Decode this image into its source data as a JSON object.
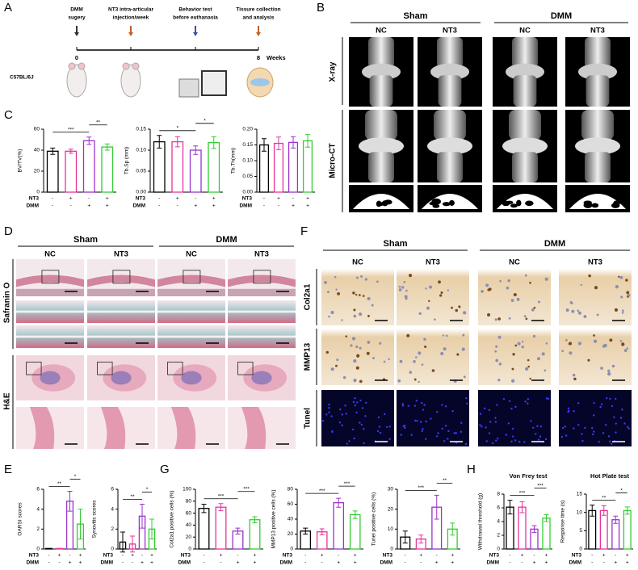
{
  "panels": {
    "A": {
      "letter": "A",
      "events": [
        [
          "DMM",
          "sugery"
        ],
        [
          "NT3 intra-articular",
          "injection/week"
        ],
        [
          "Behavior test",
          "before euthanasia"
        ],
        [
          "Tissure collection",
          "and analysis"
        ]
      ],
      "start_week": 0,
      "end_week": 8,
      "unit": "Weeks",
      "strain": "C57BL/6J"
    },
    "B": {
      "letter": "B",
      "groups": [
        "Sham",
        "DMM"
      ],
      "columns": [
        "NC",
        "NT3",
        "NC",
        "NT3"
      ],
      "rows": [
        "X-ray",
        "Micro-CT"
      ]
    },
    "C": {
      "letter": "C"
    },
    "D": {
      "letter": "D",
      "groups": [
        "Sham",
        "DMM"
      ],
      "columns": [
        "NC",
        "NT3",
        "NC",
        "NT3"
      ],
      "rows": [
        "Safranin O",
        "H&E"
      ]
    },
    "E": {
      "letter": "E"
    },
    "F": {
      "letter": "F",
      "groups": [
        "Sham",
        "DMM"
      ],
      "columns": [
        "NC",
        "NT3",
        "NC",
        "NT3"
      ],
      "rows": [
        "Col2a1",
        "MMP13",
        "Tunel"
      ]
    },
    "G": {
      "letter": "G"
    },
    "H": {
      "letter": "H"
    }
  },
  "chart_data": [
    {
      "type": "bar",
      "ylabel": "BV/TV(%)",
      "ylim": [
        0,
        60
      ],
      "yticks": [
        0,
        20,
        40,
        60
      ],
      "values": [
        39,
        39,
        49,
        43
      ],
      "errors": [
        3,
        2,
        3.5,
        3
      ],
      "colors": [
        "#000000",
        "#e6339a",
        "#9933cc",
        "#33cc33"
      ],
      "group_rows": [
        {
          "name": "NT3",
          "signs": [
            "-",
            "+",
            "-",
            "+"
          ]
        },
        {
          "name": "DMM",
          "signs": [
            "-",
            "-",
            "+",
            "+"
          ]
        }
      ],
      "significance": [
        {
          "from": 0,
          "to": 2,
          "label": "***"
        },
        {
          "from": 2,
          "to": 3,
          "label": "**"
        }
      ]
    },
    {
      "type": "bar",
      "ylabel": "Tb.Sp (mm)",
      "ylim": [
        0,
        0.15
      ],
      "yticks": [
        {
          "value": 0,
          "label": "0.00"
        },
        0.05,
        {
          "value": 0.1,
          "label": "0.10"
        },
        0.15
      ],
      "values": [
        0.12,
        0.12,
        0.1,
        0.118
      ],
      "errors": [
        0.015,
        0.012,
        0.01,
        0.014
      ],
      "colors": [
        "#000000",
        "#e6339a",
        "#9933cc",
        "#33cc33"
      ],
      "group_rows": [
        {
          "name": "NT3",
          "signs": [
            "-",
            "+",
            "-",
            "+"
          ]
        },
        {
          "name": "DMM",
          "signs": [
            "-",
            "-",
            "+",
            "+"
          ]
        }
      ],
      "significance": [
        {
          "from": 0,
          "to": 2,
          "label": "*"
        },
        {
          "from": 2,
          "to": 3,
          "label": "*"
        }
      ]
    },
    {
      "type": "bar",
      "ylabel": "Tb.Th(mm)",
      "ylim": [
        0,
        0.2
      ],
      "yticks": [
        {
          "value": 0,
          "label": "0.00"
        },
        0.05,
        {
          "value": 0.1,
          "label": "0.10"
        },
        0.15,
        {
          "value": 0.2,
          "label": "0.20"
        }
      ],
      "values": [
        0.15,
        0.155,
        0.158,
        0.163
      ],
      "errors": [
        0.02,
        0.02,
        0.018,
        0.02
      ],
      "colors": [
        "#000000",
        "#e6339a",
        "#9933cc",
        "#33cc33"
      ],
      "group_rows": [
        {
          "name": "NT3",
          "signs": [
            "-",
            "+",
            "-",
            "+"
          ]
        },
        {
          "name": "DMM",
          "signs": [
            "-",
            "-",
            "+",
            "+"
          ]
        }
      ]
    },
    {
      "type": "bar",
      "ylabel": "OARSI scores",
      "ylim": [
        0,
        6
      ],
      "yticks": [
        0,
        2,
        4,
        6
      ],
      "values": [
        0.05,
        0.05,
        4.8,
        2.5
      ],
      "errors": [
        0,
        0,
        1,
        1.5
      ],
      "colors": [
        "#000000",
        "#e6339a",
        "#9933cc",
        "#33cc33"
      ],
      "group_rows": [
        {
          "name": "NT3",
          "signs": [
            "-",
            "+",
            "-",
            "+"
          ]
        },
        {
          "name": "DMM",
          "signs": [
            "-",
            "-",
            "+",
            "+"
          ]
        }
      ],
      "significance": [
        {
          "from": 0,
          "to": 2,
          "label": "**"
        },
        {
          "from": 2,
          "to": 3,
          "label": "*"
        }
      ]
    },
    {
      "type": "bar",
      "ylabel": "Synovitis scores",
      "ylim": [
        0,
        6
      ],
      "yticks": [
        0,
        2,
        4,
        6
      ],
      "values": [
        0.7,
        0.5,
        3.3,
        2
      ],
      "errors": [
        1,
        0.8,
        1.2,
        1
      ],
      "colors": [
        "#000000",
        "#e6339a",
        "#9933cc",
        "#33cc33"
      ],
      "group_rows": [
        {
          "name": "NT3",
          "signs": [
            "-",
            "+",
            "-",
            "+"
          ]
        },
        {
          "name": "DMM",
          "signs": [
            "-",
            "-",
            "+",
            "+"
          ]
        }
      ],
      "significance": [
        {
          "from": 0,
          "to": 2,
          "label": "**"
        },
        {
          "from": 2,
          "to": 3,
          "label": "*"
        }
      ]
    },
    {
      "type": "bar",
      "ylabel": "Col2a1 positive cells (%)",
      "ylim": [
        0,
        100
      ],
      "yticks": [
        0,
        20,
        40,
        60,
        80,
        100
      ],
      "values": [
        68,
        70,
        30,
        49
      ],
      "errors": [
        7,
        6,
        5,
        5
      ],
      "colors": [
        "#000000",
        "#e6339a",
        "#9933cc",
        "#33cc33"
      ],
      "group_rows": [
        {
          "name": "NT3",
          "signs": [
            "-",
            "+",
            "-",
            "+"
          ]
        },
        {
          "name": "DMM",
          "signs": [
            "-",
            "-",
            "+",
            "+"
          ]
        }
      ],
      "significance": [
        {
          "from": 0,
          "to": 2,
          "label": "***"
        },
        {
          "from": 2,
          "to": 3,
          "label": "***"
        }
      ]
    },
    {
      "type": "bar",
      "ylabel": "MMP13 positive cells (%)",
      "ylim": [
        0,
        80
      ],
      "yticks": [
        0,
        20,
        40,
        60,
        80
      ],
      "values": [
        24,
        23,
        62,
        46
      ],
      "errors": [
        4,
        4,
        6,
        5
      ],
      "colors": [
        "#000000",
        "#e6339a",
        "#9933cc",
        "#33cc33"
      ],
      "group_rows": [
        {
          "name": "NT3",
          "signs": [
            "-",
            "+",
            "-",
            "+"
          ]
        },
        {
          "name": "DMM",
          "signs": [
            "-",
            "-",
            "+",
            "+"
          ]
        }
      ],
      "significance": [
        {
          "from": 0,
          "to": 2,
          "label": "***"
        },
        {
          "from": 2,
          "to": 3,
          "label": "***"
        }
      ]
    },
    {
      "type": "bar",
      "ylabel": "Tunel positive cells (%)",
      "ylim": [
        0,
        30
      ],
      "yticks": [
        0,
        10,
        20,
        30
      ],
      "values": [
        6,
        5,
        21,
        10
      ],
      "errors": [
        3,
        2,
        6,
        3
      ],
      "colors": [
        "#000000",
        "#e6339a",
        "#9933cc",
        "#33cc33"
      ],
      "group_rows": [
        {
          "name": "NT3",
          "signs": [
            "-",
            "+",
            "-",
            "+"
          ]
        },
        {
          "name": "DMM",
          "signs": [
            "-",
            "-",
            "+",
            "+"
          ]
        }
      ],
      "significance": [
        {
          "from": 0,
          "to": 2,
          "label": "***"
        },
        {
          "from": 2,
          "to": 3,
          "label": "**"
        }
      ]
    },
    {
      "type": "bar",
      "title": "Von Frey test",
      "ylabel": "Withdrawal threshold (g)",
      "ylim": [
        0,
        8
      ],
      "yticks": [
        0,
        2,
        4,
        6,
        8
      ],
      "values": [
        6.1,
        6.1,
        2.9,
        4.5
      ],
      "errors": [
        1,
        0.8,
        0.5,
        0.5
      ],
      "colors": [
        "#000000",
        "#e6339a",
        "#9933cc",
        "#33cc33"
      ],
      "group_rows": [
        {
          "name": "NT3",
          "signs": [
            "-",
            "+",
            "-",
            "+"
          ]
        },
        {
          "name": "DMM",
          "signs": [
            "-",
            "-",
            "+",
            "+"
          ]
        }
      ],
      "significance": [
        {
          "from": 0,
          "to": 2,
          "label": "***"
        },
        {
          "from": 2,
          "to": 3,
          "label": "***"
        }
      ]
    },
    {
      "type": "bar",
      "title": "Hot Plate test",
      "ylabel": "Response time (s)",
      "ylim": [
        0,
        15
      ],
      "yticks": [
        0,
        5,
        10,
        15
      ],
      "values": [
        10.5,
        10.5,
        8,
        10.5
      ],
      "errors": [
        1.5,
        1.3,
        1,
        1
      ],
      "colors": [
        "#000000",
        "#e6339a",
        "#9933cc",
        "#33cc33"
      ],
      "group_rows": [
        {
          "name": "NT3",
          "signs": [
            "-",
            "+",
            "-",
            "+"
          ]
        },
        {
          "name": "DMM",
          "signs": [
            "-",
            "-",
            "+",
            "+"
          ]
        }
      ],
      "significance": [
        {
          "from": 0,
          "to": 2,
          "label": "**"
        },
        {
          "from": 2,
          "to": 3,
          "label": "*"
        }
      ]
    }
  ]
}
